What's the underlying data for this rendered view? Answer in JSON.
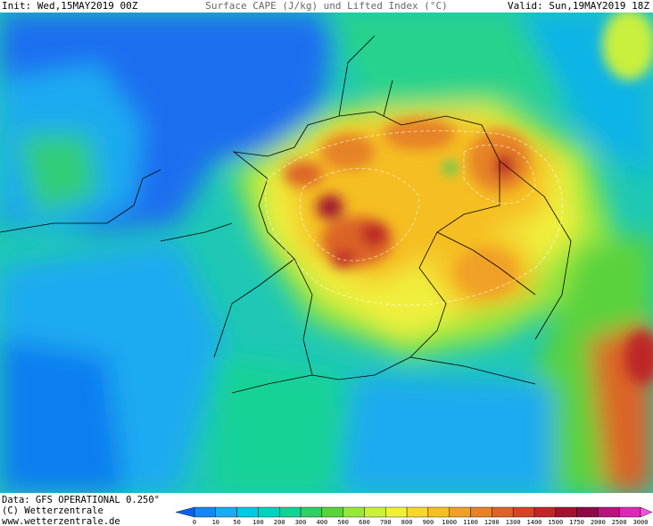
{
  "header": {
    "init": "Init: Wed,15MAY2019 00Z",
    "title": "Surface CAPE (J/kg) und Lifted Index (°C)",
    "valid": "Valid: Sun,19MAY2019 18Z"
  },
  "footer": {
    "data": "Data: GFS OPERATIONAL 0.250°",
    "copyright": "(C) Wetterzentrale",
    "url": "www.wetterzentrale.de"
  },
  "legend": {
    "labels": [
      0,
      10,
      50,
      100,
      200,
      300,
      400,
      500,
      600,
      700,
      800,
      900,
      1000,
      1100,
      1200,
      1300,
      1400,
      1500,
      1750,
      2000,
      2500,
      3000
    ],
    "colors": [
      "#0a5ff0",
      "#1487f0",
      "#1eaaf0",
      "#00c8e6",
      "#00d2be",
      "#14d296",
      "#32cd64",
      "#5ad23c",
      "#96e63c",
      "#c8f03c",
      "#f0f03c",
      "#f5d72d",
      "#f5be23",
      "#f0a028",
      "#e68228",
      "#dc6428",
      "#d24628",
      "#be2828",
      "#a01432",
      "#8c0a46",
      "#b4147d",
      "#dc28b4",
      "#f550dc"
    ]
  }
}
